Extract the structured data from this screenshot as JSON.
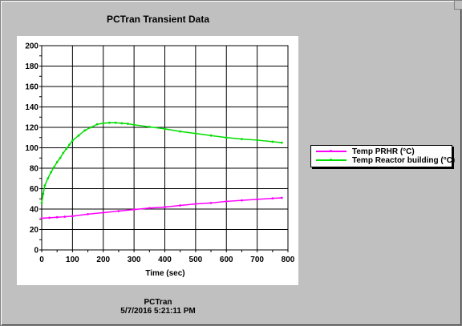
{
  "title": "PCTran Transient Data",
  "footer": {
    "line1": "PCTran",
    "line2": "5/7/2016 5:21:11 PM"
  },
  "colors": {
    "prhr": "#ff00ff",
    "building": "#00dd00"
  },
  "chart_data": {
    "type": "line",
    "title": "PCTran Transient Data",
    "xlabel": "Time (sec)",
    "ylabel": "",
    "xlim": [
      0,
      800
    ],
    "ylim": [
      0,
      200
    ],
    "xticks": [
      0,
      100,
      200,
      300,
      400,
      500,
      600,
      700,
      800
    ],
    "yticks": [
      0,
      20,
      40,
      60,
      80,
      100,
      120,
      140,
      160,
      180,
      200
    ],
    "grid": true,
    "legend_placement": "right",
    "series": [
      {
        "name": "Temp PRHR (°C)",
        "color": "#ff00ff",
        "x": [
          0,
          25,
          50,
          75,
          100,
          150,
          200,
          250,
          300,
          350,
          400,
          450,
          500,
          550,
          600,
          650,
          700,
          750,
          780
        ],
        "y": [
          31,
          31.5,
          32,
          32.5,
          33,
          35,
          36.5,
          38,
          39.5,
          41,
          42,
          43.5,
          45,
          46,
          47.5,
          48.5,
          49.5,
          50.5,
          51
        ]
      },
      {
        "name": "Temp Reactor building (°C)",
        "color": "#00dd00",
        "x": [
          0,
          5,
          10,
          20,
          30,
          40,
          50,
          60,
          70,
          80,
          90,
          100,
          120,
          140,
          160,
          180,
          200,
          220,
          240,
          260,
          280,
          300,
          350,
          400,
          450,
          500,
          550,
          600,
          650,
          700,
          750,
          780
        ],
        "y": [
          46,
          55,
          63,
          70,
          76,
          81,
          86,
          90,
          95,
          99,
          103,
          107,
          112,
          117,
          120,
          123,
          124,
          124.5,
          124.5,
          124,
          123.5,
          122.5,
          120.5,
          118.5,
          116,
          114,
          112,
          110,
          108.5,
          107.5,
          106,
          105
        ]
      }
    ]
  }
}
